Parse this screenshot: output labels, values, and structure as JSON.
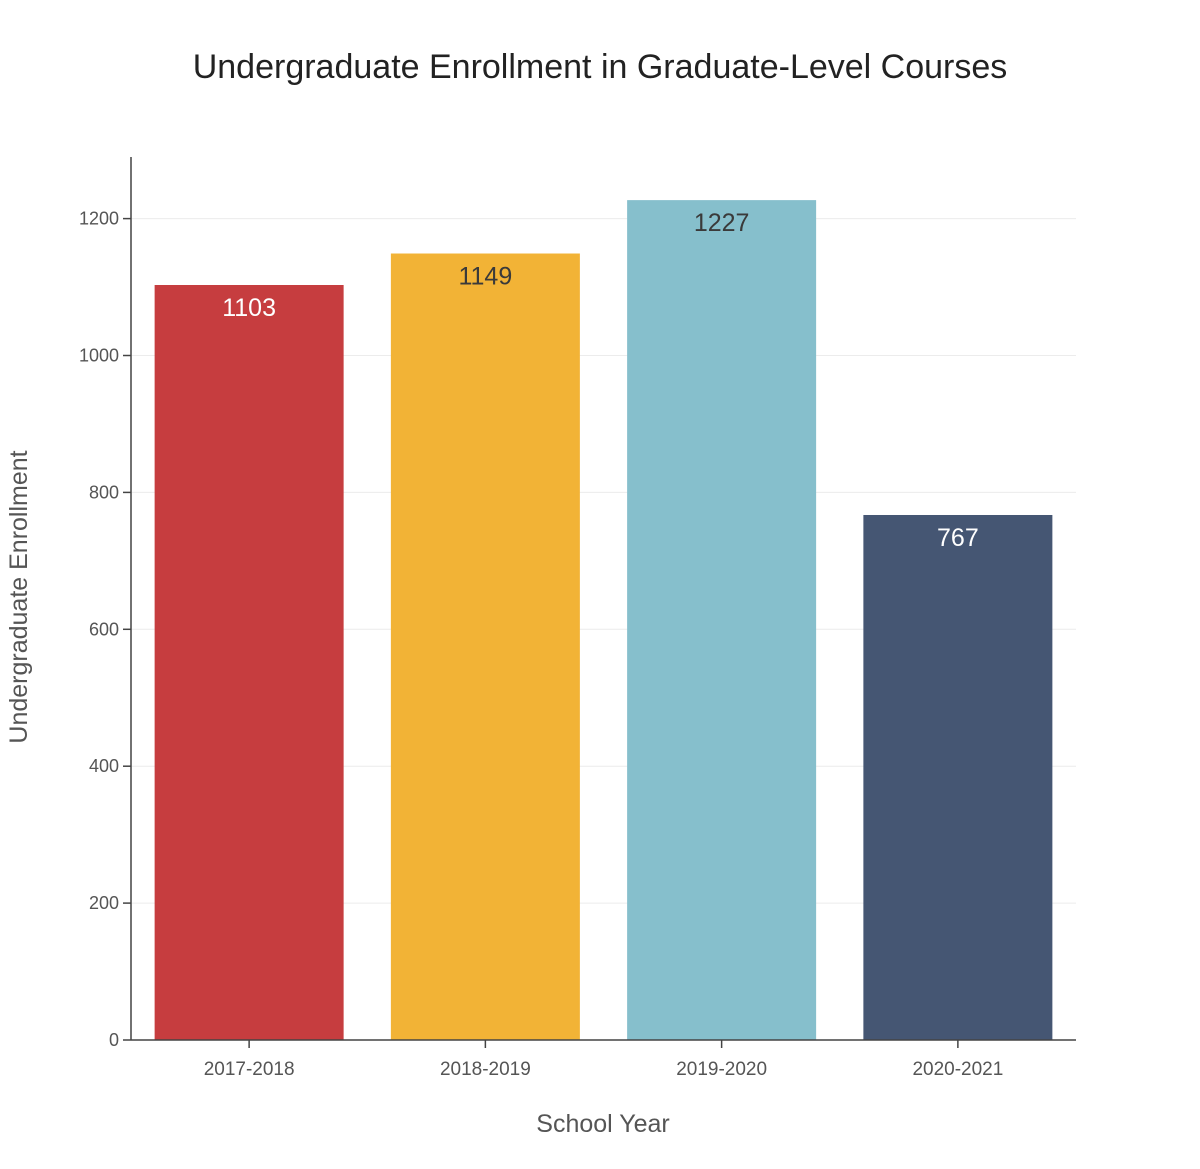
{
  "chart_data": {
    "type": "bar",
    "title": "Undergraduate Enrollment in Graduate-Level Courses",
    "xlabel": "School Year",
    "ylabel": "Undergraduate Enrollment",
    "categories": [
      "2017-2018",
      "2018-2019",
      "2019-2020",
      "2020-2021"
    ],
    "values": [
      1103,
      1149,
      1227,
      767
    ],
    "data_labels": [
      "1103",
      "1149",
      "1227",
      "767"
    ],
    "bar_colors": [
      "#c63d3f",
      "#f2b336",
      "#86bfcc",
      "#455673"
    ],
    "label_colors": [
      "#ffffff",
      "#3a3a3a",
      "#3a3a3a",
      "#ffffff"
    ],
    "ylim": [
      0,
      1290
    ],
    "yticks": [
      0,
      200,
      400,
      600,
      800,
      1000,
      1200
    ],
    "ytick_labels": [
      "0",
      "200",
      "400",
      "600",
      "800",
      "1000",
      "1200"
    ],
    "grid": "horizontal",
    "legend": "none"
  }
}
